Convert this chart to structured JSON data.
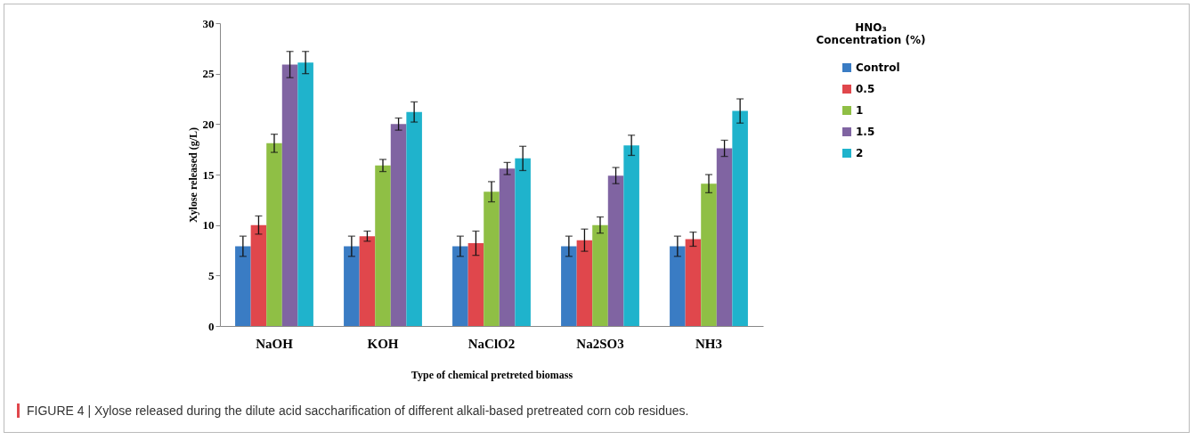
{
  "chart_data": {
    "type": "bar",
    "xlabel": "Type of chemical pretreted biomass",
    "ylabel": "Xylose released (g/L)",
    "legend_title": "HNO₃ Concentration (%)",
    "categories": [
      "NaOH",
      "KOH",
      "NaClO2",
      "Na2SO3",
      "NH3"
    ],
    "series": [
      {
        "name": "Control",
        "color": "#3a7cc4",
        "values": [
          7.9,
          7.9,
          7.9,
          7.9,
          7.9
        ],
        "errors": [
          1.0,
          1.0,
          1.0,
          1.0,
          1.0
        ]
      },
      {
        "name": "0.5",
        "color": "#e0474c",
        "values": [
          10.0,
          8.9,
          8.2,
          8.5,
          8.6
        ],
        "errors": [
          0.9,
          0.5,
          1.2,
          1.1,
          0.7
        ]
      },
      {
        "name": "1",
        "color": "#8fbf45",
        "values": [
          18.1,
          15.9,
          13.3,
          10.0,
          14.1
        ],
        "errors": [
          0.9,
          0.6,
          1.0,
          0.8,
          0.9
        ]
      },
      {
        "name": "1.5",
        "color": "#8064a2",
        "values": [
          25.9,
          20.0,
          15.6,
          14.9,
          17.6
        ],
        "errors": [
          1.3,
          0.6,
          0.6,
          0.8,
          0.8
        ]
      },
      {
        "name": "2",
        "color": "#1fb3cc",
        "values": [
          26.1,
          21.2,
          16.6,
          17.9,
          21.3
        ],
        "errors": [
          1.1,
          1.0,
          1.2,
          1.0,
          1.2
        ]
      }
    ],
    "ylim": [
      0,
      30
    ],
    "yticks": [
      0,
      5,
      10,
      15,
      20,
      25,
      30
    ],
    "legend": "right",
    "annotations": [
      "FIGURE 4 | Xylose released during the dilute acid saccharification of different alkali-based pretreated corn cob residues."
    ]
  }
}
